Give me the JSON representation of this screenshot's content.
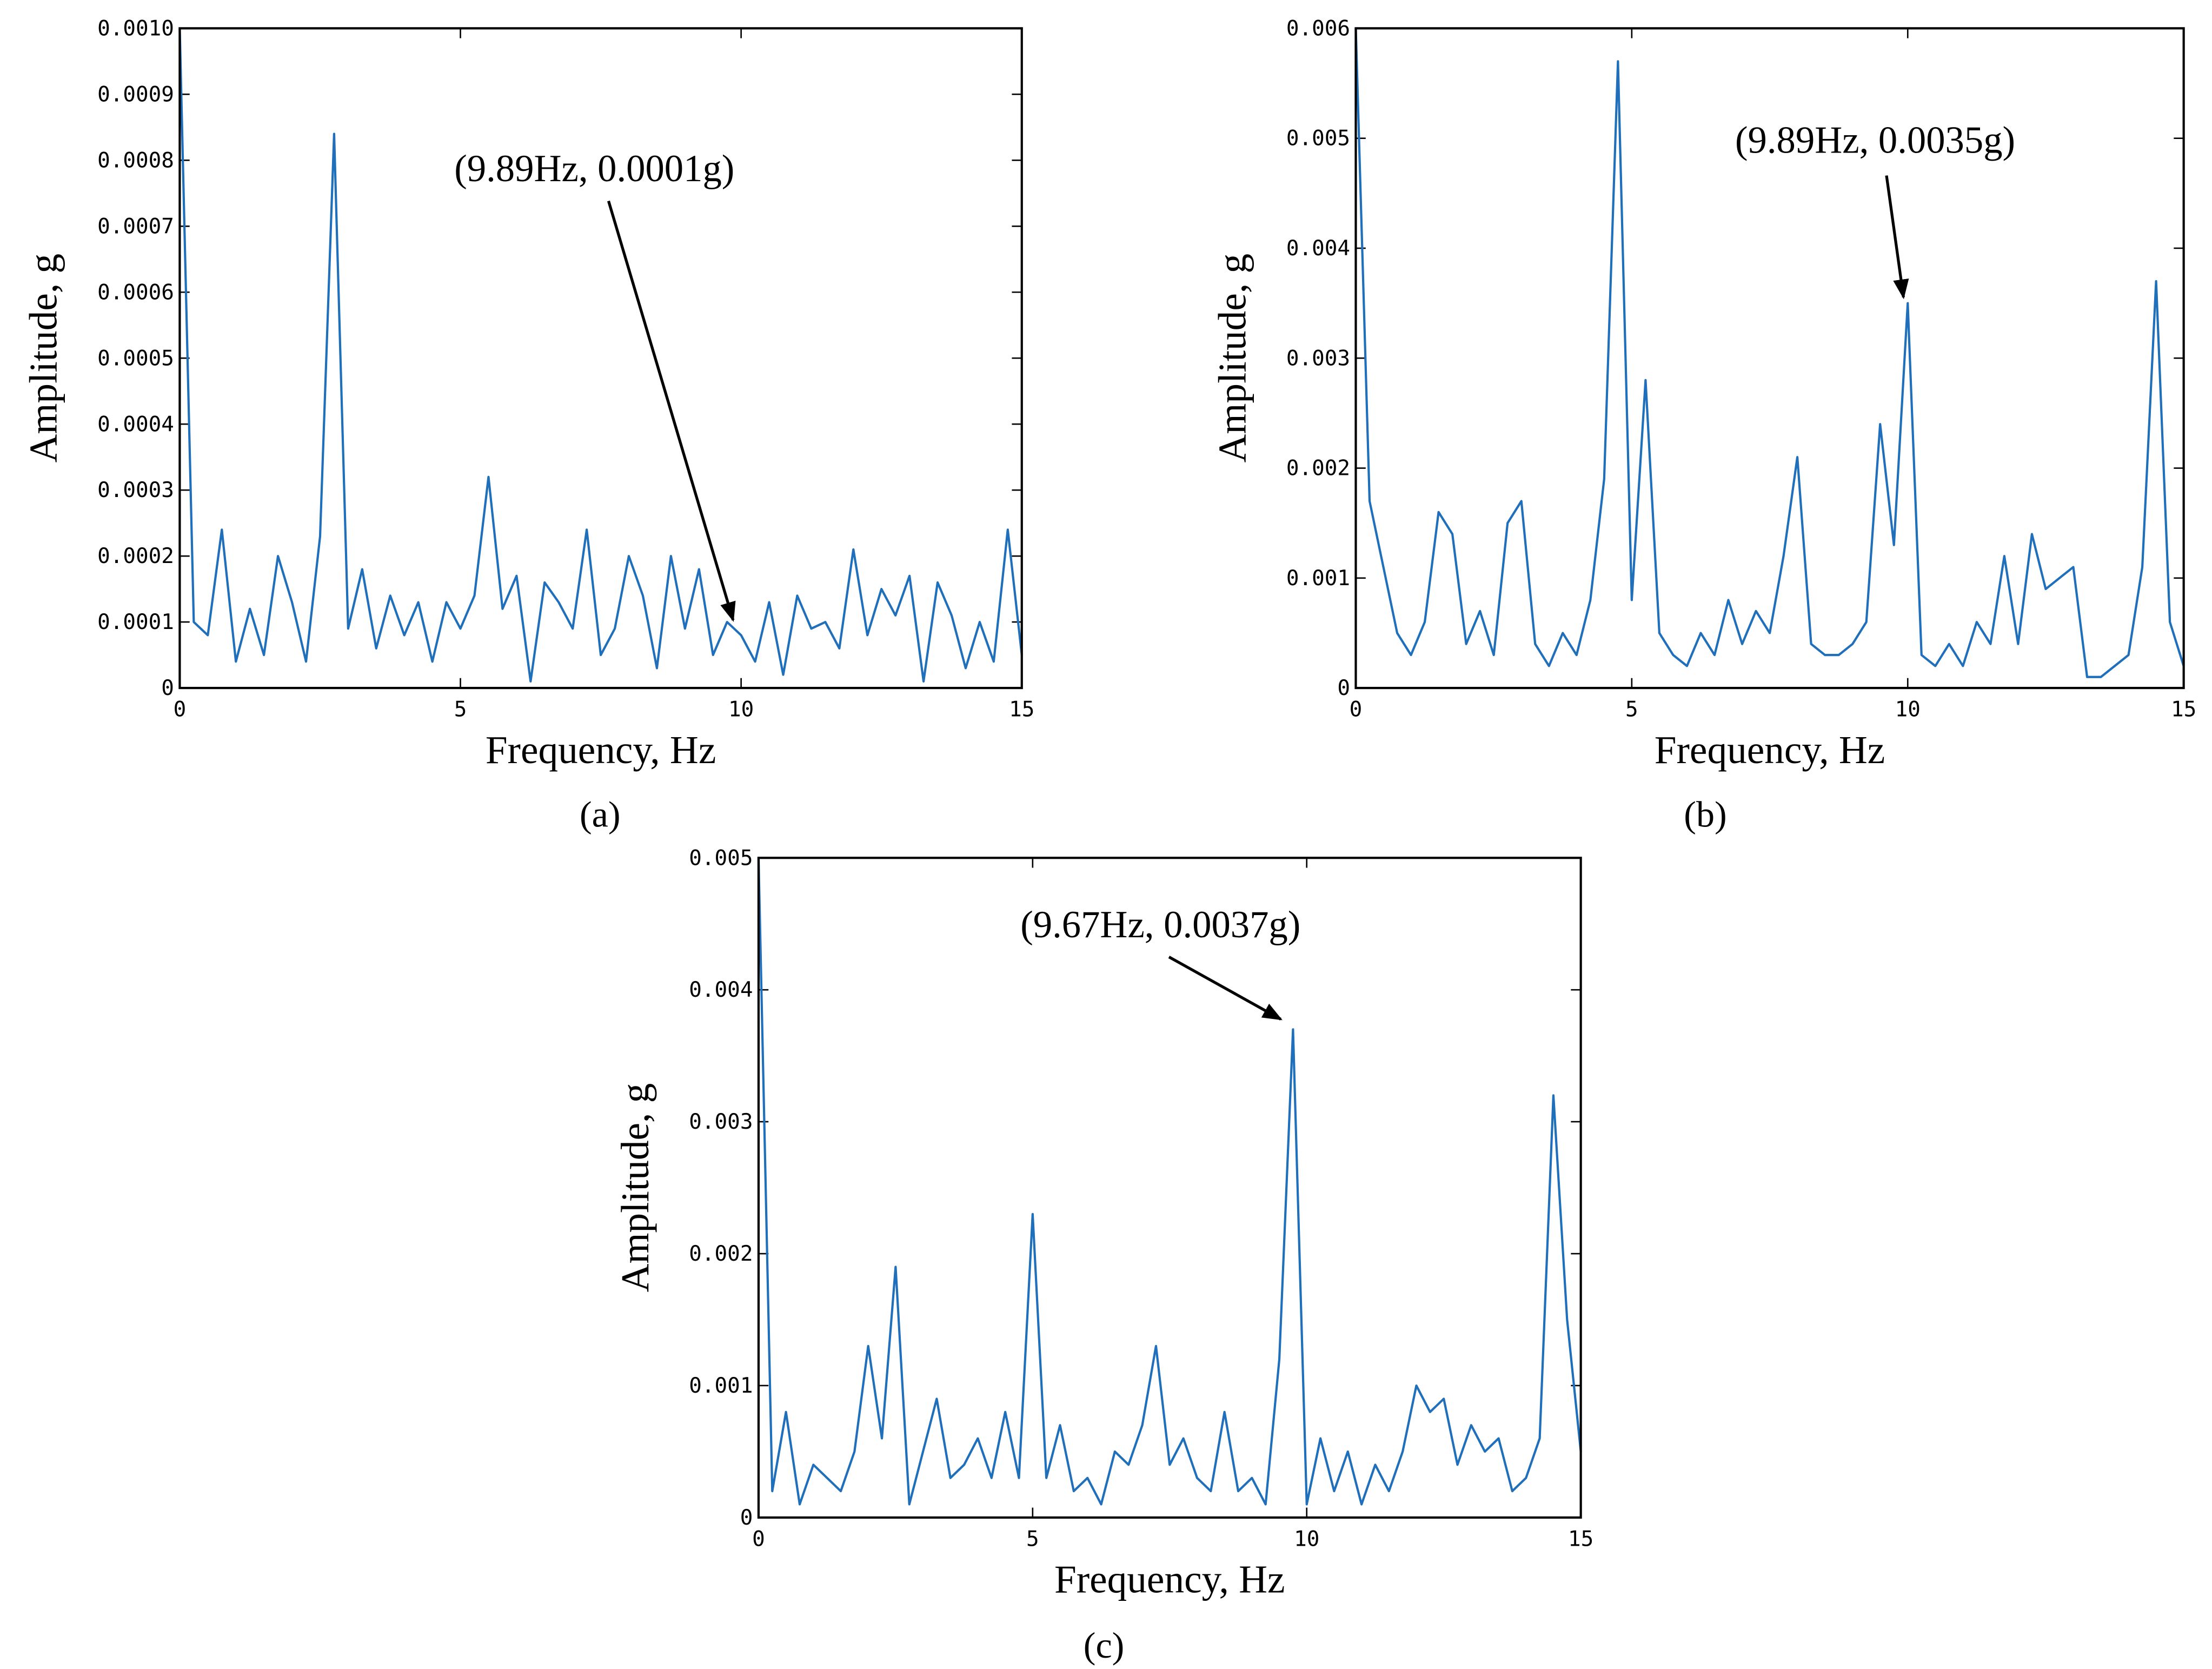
{
  "chart_data": [
    {
      "type": "line",
      "xlabel": "Frequency, Hz",
      "ylabel": "Amplitude, g",
      "caption": "(a)",
      "annotation": "(9.89Hz, 0.0001g)",
      "color": "#1f6fba",
      "xlim": [
        0,
        15
      ],
      "ylim": [
        0,
        0.001
      ],
      "xticks": [
        0,
        5,
        10,
        15
      ],
      "yticks": [
        0,
        0.0001,
        0.0002,
        0.0003,
        0.0004,
        0.0005,
        0.0006,
        0.0007,
        0.0008,
        0.0009,
        {
          "value": 0.001,
          "label": "0.0010"
        }
      ],
      "x": [
        0,
        0.25,
        0.5,
        0.75,
        1,
        1.25,
        1.5,
        1.75,
        2,
        2.25,
        2.5,
        2.75,
        3,
        3.25,
        3.5,
        3.75,
        4,
        4.25,
        4.5,
        4.75,
        5,
        5.25,
        5.5,
        5.75,
        6,
        6.25,
        6.5,
        6.75,
        7,
        7.25,
        7.5,
        7.75,
        8,
        8.25,
        8.5,
        8.75,
        9,
        9.25,
        9.5,
        9.75,
        10,
        10.25,
        10.5,
        10.75,
        11,
        11.25,
        11.5,
        11.75,
        12,
        12.25,
        12.5,
        12.75,
        13,
        13.25,
        13.5,
        13.75,
        14,
        14.25,
        14.5,
        14.75,
        15
      ],
      "values": [
        0.001,
        0.0001,
        8e-05,
        0.00024,
        4e-05,
        0.00012,
        5e-05,
        0.0002,
        0.00013,
        4e-05,
        0.00023,
        0.00084,
        9e-05,
        0.00018,
        6e-05,
        0.00014,
        8e-05,
        0.00013,
        4e-05,
        0.00013,
        9e-05,
        0.00014,
        0.00032,
        0.00012,
        0.00017,
        1e-05,
        0.00016,
        0.00013,
        9e-05,
        0.00024,
        5e-05,
        9e-05,
        0.0002,
        0.00014,
        3e-05,
        0.0002,
        9e-05,
        0.00018,
        5e-05,
        0.0001,
        8e-05,
        4e-05,
        0.00013,
        2e-05,
        0.00014,
        9e-05,
        0.0001,
        6e-05,
        0.00021,
        8e-05,
        0.00015,
        0.00011,
        0.00017,
        1e-05,
        0.00016,
        0.00011,
        3e-05,
        0.0001,
        4e-05,
        0.00024,
        5e-05
      ]
    },
    {
      "type": "line",
      "xlabel": "Frequency, Hz",
      "ylabel": "Amplitude, g",
      "caption": "(b)",
      "annotation": "(9.89Hz, 0.0035g)",
      "color": "#1f6fba",
      "xlim": [
        0,
        15
      ],
      "ylim": [
        0,
        0.006
      ],
      "xticks": [
        0,
        5,
        10,
        15
      ],
      "yticks": [
        0,
        0.001,
        0.002,
        0.003,
        0.004,
        0.005,
        0.006
      ],
      "x": [
        0,
        0.25,
        0.5,
        0.75,
        1,
        1.25,
        1.5,
        1.75,
        2,
        2.25,
        2.5,
        2.75,
        3,
        3.25,
        3.5,
        3.75,
        4,
        4.25,
        4.5,
        4.75,
        5,
        5.25,
        5.5,
        5.75,
        6,
        6.25,
        6.5,
        6.75,
        7,
        7.25,
        7.5,
        7.75,
        8,
        8.25,
        8.5,
        8.75,
        9,
        9.25,
        9.5,
        9.75,
        10,
        10.25,
        10.5,
        10.75,
        11,
        11.25,
        11.5,
        11.75,
        12,
        12.25,
        12.5,
        12.75,
        13,
        13.25,
        13.5,
        13.75,
        14,
        14.25,
        14.5,
        14.75,
        15
      ],
      "values": [
        0.006,
        0.0017,
        0.0011,
        0.0005,
        0.0003,
        0.0006,
        0.0016,
        0.0014,
        0.0004,
        0.0007,
        0.0003,
        0.0015,
        0.0017,
        0.0004,
        0.0002,
        0.0005,
        0.0003,
        0.0008,
        0.0019,
        0.0057,
        0.0008,
        0.0028,
        0.0005,
        0.0003,
        0.0002,
        0.0005,
        0.0003,
        0.0008,
        0.0004,
        0.0007,
        0.0005,
        0.0012,
        0.0021,
        0.0004,
        0.0003,
        0.0003,
        0.0004,
        0.0006,
        0.0024,
        0.0013,
        0.0035,
        0.0003,
        0.0002,
        0.0004,
        0.0002,
        0.0006,
        0.0004,
        0.0012,
        0.0004,
        0.0014,
        0.0009,
        0.001,
        0.0011,
        0.0001,
        0.0001,
        0.0002,
        0.0003,
        0.0011,
        0.0037,
        0.0006,
        0.0002
      ]
    },
    {
      "type": "line",
      "xlabel": "Frequency, Hz",
      "ylabel": "Amplitude, g",
      "caption": "(c)",
      "annotation": "(9.67Hz, 0.0037g)",
      "color": "#1f6fba",
      "xlim": [
        0,
        15
      ],
      "ylim": [
        0,
        0.005
      ],
      "xticks": [
        0,
        5,
        10,
        15
      ],
      "yticks": [
        0,
        0.001,
        0.002,
        0.003,
        0.004,
        0.005
      ],
      "x": [
        0,
        0.25,
        0.5,
        0.75,
        1,
        1.25,
        1.5,
        1.75,
        2,
        2.25,
        2.5,
        2.75,
        3,
        3.25,
        3.5,
        3.75,
        4,
        4.25,
        4.5,
        4.75,
        5,
        5.25,
        5.5,
        5.75,
        6,
        6.25,
        6.5,
        6.75,
        7,
        7.25,
        7.5,
        7.75,
        8,
        8.25,
        8.5,
        8.75,
        9,
        9.25,
        9.5,
        9.75,
        10,
        10.25,
        10.5,
        10.75,
        11,
        11.25,
        11.5,
        11.75,
        12,
        12.25,
        12.5,
        12.75,
        13,
        13.25,
        13.5,
        13.75,
        14,
        14.25,
        14.5,
        14.75,
        15
      ],
      "values": [
        0.005,
        0.0002,
        0.0008,
        0.0001,
        0.0004,
        0.0003,
        0.0002,
        0.0005,
        0.0013,
        0.0006,
        0.0019,
        0.0001,
        0.0005,
        0.0009,
        0.0003,
        0.0004,
        0.0006,
        0.0003,
        0.0008,
        0.0003,
        0.0023,
        0.0003,
        0.0007,
        0.0002,
        0.0003,
        0.0001,
        0.0005,
        0.0004,
        0.0007,
        0.0013,
        0.0004,
        0.0006,
        0.0003,
        0.0002,
        0.0008,
        0.0002,
        0.0003,
        0.0001,
        0.0012,
        0.0037,
        0.0001,
        0.0006,
        0.0002,
        0.0005,
        0.0001,
        0.0004,
        0.0002,
        0.0005,
        0.001,
        0.0008,
        0.0009,
        0.0004,
        0.0007,
        0.0005,
        0.0006,
        0.0002,
        0.0003,
        0.0006,
        0.0032,
        0.0015,
        0.0005
      ]
    }
  ]
}
